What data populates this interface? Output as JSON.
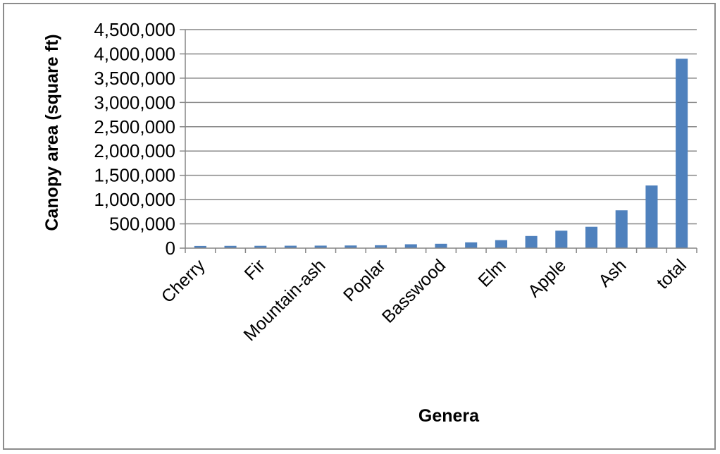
{
  "chart_data": {
    "type": "bar",
    "title": "",
    "xlabel": "Genera",
    "ylabel": "Canopy area (square ft)",
    "ylim": [
      0,
      4500000
    ],
    "grid": true,
    "legend": "none",
    "bar_color": "#4f81bd",
    "y_ticks": [
      "0",
      "500,000",
      "1,000,000",
      "1,500,000",
      "2,000,000",
      "2,500,000",
      "3,000,000",
      "3,500,000",
      "4,000,000",
      "4,500,000"
    ],
    "y_tick_values": [
      0,
      500000,
      1000000,
      1500000,
      2000000,
      2500000,
      3000000,
      3500000,
      4000000,
      4500000
    ],
    "categories": [
      "Cherry",
      "",
      "Fir",
      "",
      "Mountain-ash",
      "",
      "Poplar",
      "",
      "Basswood",
      "",
      "Elm",
      "",
      "Apple",
      "",
      "Ash",
      "",
      "total"
    ],
    "values": [
      45000,
      47000,
      48000,
      50000,
      52000,
      55000,
      60000,
      80000,
      90000,
      120000,
      165000,
      250000,
      360000,
      440000,
      780000,
      1290000,
      3900000
    ]
  }
}
